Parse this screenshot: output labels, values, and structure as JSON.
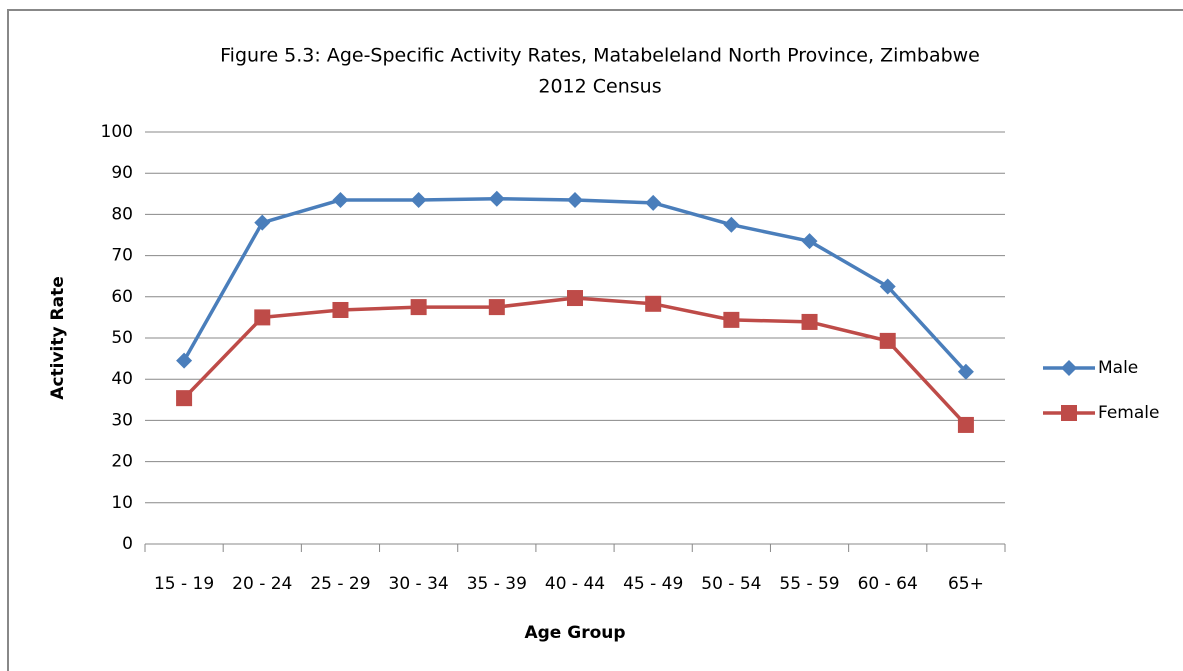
{
  "chart_data": {
    "type": "line",
    "title": [
      "Figure 5.3: Age-Specific Activity Rates, Matabeleland North Province, Zimbabwe",
      "2012 Census"
    ],
    "x_label": "Age Group",
    "y_label": "Activity Rate",
    "categories": [
      "15 - 19",
      "20 - 24",
      "25 - 29",
      "30 - 34",
      "35 - 39",
      "40 - 44",
      "45 - 49",
      "50 - 54",
      "55 - 59",
      "60 - 64",
      "65+"
    ],
    "series": [
      {
        "name": "Male",
        "color": "#4a7ebb",
        "marker": "diamond",
        "values": [
          44.5,
          78,
          83.5,
          83.5,
          83.8,
          83.5,
          82.8,
          77.5,
          73.5,
          62.5,
          41.8
        ]
      },
      {
        "name": "Female",
        "color": "#be4b48",
        "marker": "square",
        "values": [
          35.4,
          55,
          56.8,
          57.5,
          57.5,
          59.7,
          58.3,
          54.4,
          53.9,
          49.3,
          28.9
        ]
      }
    ],
    "ylim": [
      0,
      100
    ],
    "yticks": [
      0,
      10,
      20,
      30,
      40,
      50,
      60,
      70,
      80,
      90,
      100
    ],
    "grid": true,
    "legend": "right"
  }
}
